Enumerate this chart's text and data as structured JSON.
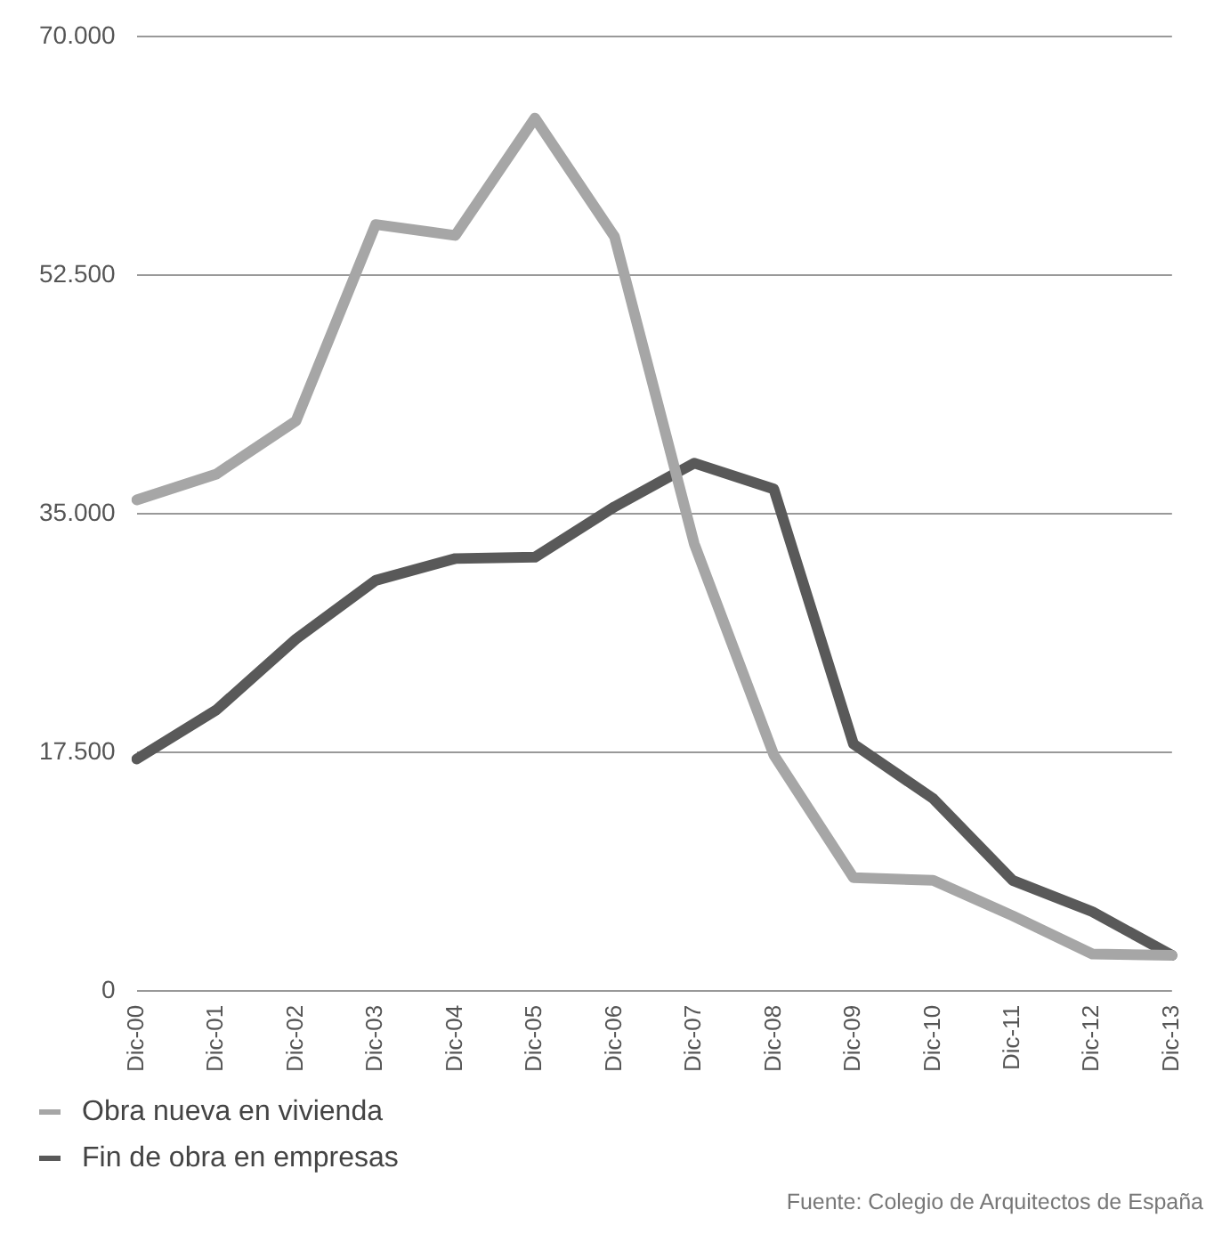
{
  "chart_data": {
    "type": "line",
    "categories": [
      "Dic-00",
      "Dic-01",
      "Dic-02",
      "Dic-03",
      "Dic-04",
      "Dic-05",
      "Dic-06",
      "Dic-07",
      "Dic-08",
      "Dic-09",
      "Dic-10",
      "Dic-11",
      "Dic-12",
      "Dic-13"
    ],
    "series": [
      {
        "name": "Obra nueva en vivienda",
        "color": "#a6a6a6",
        "values": [
          36000,
          37900,
          41800,
          56200,
          55400,
          64000,
          55300,
          32800,
          17300,
          8300,
          8100,
          5500,
          2700,
          2600
        ]
      },
      {
        "name": "Fin de obra en empresas",
        "color": "#595959",
        "values": [
          17000,
          20600,
          25800,
          30100,
          31700,
          31800,
          35500,
          38700,
          36800,
          18100,
          14100,
          8100,
          5800,
          2600
        ]
      }
    ],
    "ylim": [
      0,
      70000
    ],
    "yticks": [
      {
        "value": 0,
        "label": "0"
      },
      {
        "value": 17500,
        "label": "17.500"
      },
      {
        "value": 35000,
        "label": "35.000"
      },
      {
        "value": 52500,
        "label": "52.500"
      },
      {
        "value": 70000,
        "label": "70.000"
      }
    ],
    "grid": "y",
    "legend": "bottom left",
    "marker": "none",
    "line_style": "solid",
    "annotations": [
      "Fuente: Colegio de Arquitectos de España"
    ]
  }
}
